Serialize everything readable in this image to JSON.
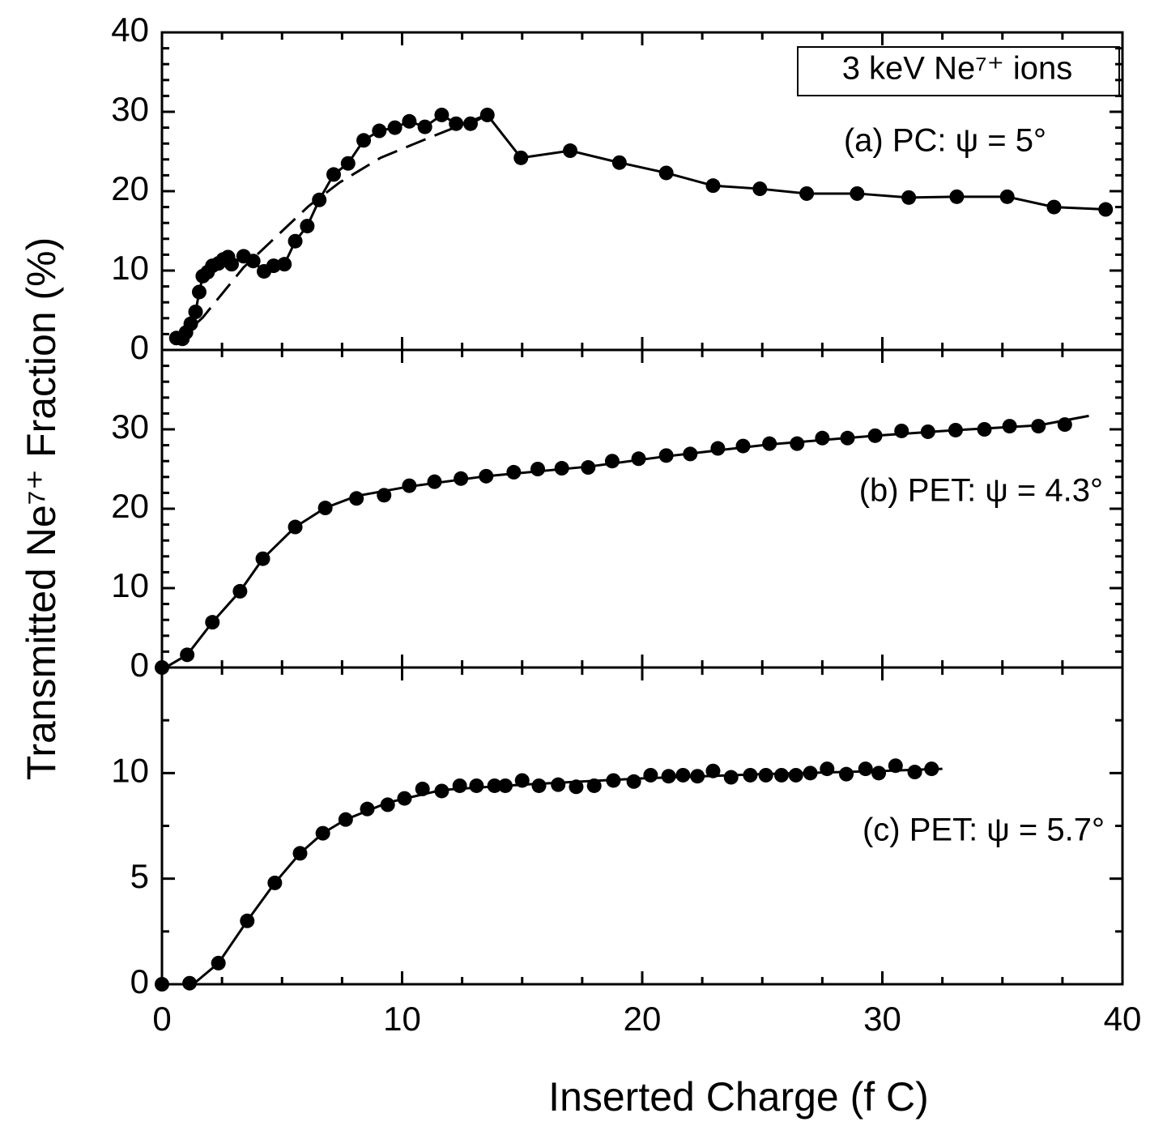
{
  "chart_data": [
    {
      "type": "line",
      "ylabel": "Transmitted Ne⁷⁺ Fraction (%)",
      "annotations": [
        "3 keV Ne⁷⁺ ions",
        "(a)  PC:  ψ = 5°"
      ],
      "xlim": [
        0,
        40
      ],
      "xticks": [
        0,
        10,
        20,
        30,
        40
      ],
      "xminorticks": [
        2.5,
        5,
        7.5,
        12.5,
        15,
        17.5,
        22.5,
        25,
        27.5,
        32.5,
        35,
        37.5
      ],
      "ylim": [
        0,
        40
      ],
      "yticks": [
        0,
        10,
        20,
        30,
        40
      ],
      "yminorticks": [
        2,
        4,
        6,
        8,
        12,
        14,
        16,
        18,
        22,
        24,
        26,
        28,
        32,
        34,
        36,
        38
      ],
      "series": [
        {
          "color": "#000000",
          "marker": true,
          "dash": false,
          "x": [
            0.6,
            0.85,
            1.0,
            1.2,
            1.4,
            1.55,
            1.7,
            1.9,
            2.1,
            2.35,
            2.55,
            2.75,
            2.9,
            3.4,
            3.8,
            4.25,
            4.65,
            5.1,
            5.55,
            6.05,
            6.55,
            7.15,
            7.75,
            8.4,
            9.05,
            9.7,
            10.3,
            10.95,
            11.65,
            12.25,
            12.85,
            13.55,
            14.95,
            17.0,
            19.05,
            21.0,
            22.95,
            24.9,
            26.85,
            28.95,
            31.1,
            33.1,
            35.2,
            37.15,
            39.3
          ],
          "values": [
            1.5,
            1.4,
            2.2,
            3.3,
            4.8,
            7.3,
            9.3,
            9.8,
            10.6,
            10.9,
            11.4,
            11.7,
            10.8,
            11.8,
            11.2,
            9.9,
            10.6,
            10.8,
            13.7,
            15.6,
            18.9,
            22.1,
            23.5,
            26.4,
            27.6,
            28.0,
            28.8,
            28.1,
            29.6,
            28.5,
            28.5,
            29.6,
            24.2,
            25.1,
            23.6,
            22.3,
            20.7,
            20.3,
            19.7,
            19.7,
            19.2,
            19.3,
            19.3,
            18.0,
            17.7
          ]
        },
        {
          "color": "#000000",
          "marker": false,
          "dash": true,
          "x": [
            0.5,
            1.7,
            3.4,
            6.1,
            7.4,
            9.1,
            11.1,
            13.5
          ],
          "values": [
            0.7,
            4.1,
            10.4,
            18.1,
            21.1,
            24.2,
            26.7,
            29.6
          ]
        }
      ]
    },
    {
      "type": "line",
      "annotations": [
        "(b) PET: ψ = 4.3°"
      ],
      "xlim": [
        0,
        40
      ],
      "xticks": [
        0,
        10,
        20,
        30,
        40
      ],
      "xminorticks": [
        2.5,
        5,
        7.5,
        12.5,
        15,
        17.5,
        22.5,
        25,
        27.5,
        32.5,
        35,
        37.5
      ],
      "ylim": [
        0,
        40
      ],
      "yticks": [
        0,
        10,
        20,
        30
      ],
      "yminorticks": [
        2,
        4,
        6,
        8,
        12,
        14,
        16,
        18,
        22,
        24,
        26,
        28,
        32,
        34,
        36,
        38
      ],
      "series": [
        {
          "color": "#000000",
          "marker": true,
          "dash": false,
          "line": false,
          "x": [
            0,
            1.05,
            2.1,
            3.25,
            4.2,
            5.55,
            6.8,
            8.1,
            9.25,
            10.3,
            11.35,
            12.45,
            13.5,
            14.65,
            15.65,
            16.65,
            17.75,
            18.75,
            19.85,
            21.0,
            22.0,
            23.15,
            24.2,
            25.3,
            26.45,
            27.5,
            28.55,
            29.7,
            30.8,
            31.9,
            33.05,
            34.25,
            35.3,
            36.5,
            37.6
          ],
          "values": [
            0,
            1.6,
            5.7,
            9.6,
            13.7,
            17.7,
            20.1,
            21.3,
            21.7,
            22.9,
            23.4,
            23.8,
            24.1,
            24.6,
            25.0,
            25.1,
            25.2,
            26.0,
            26.3,
            26.7,
            26.9,
            27.6,
            27.9,
            28.2,
            28.2,
            28.9,
            28.9,
            29.2,
            29.8,
            29.7,
            29.9,
            30.0,
            30.4,
            30.4,
            30.6
          ]
        },
        {
          "color": "#000000",
          "marker": false,
          "dash": false,
          "x": [
            0.2,
            1.05,
            2.1,
            3.25,
            4.2,
            5.55,
            6.8,
            8.1,
            10.3,
            13.5,
            17.75,
            21.0,
            25.3,
            29.7,
            33.05,
            36.5,
            38.6
          ],
          "values": [
            0.1,
            1.6,
            5.7,
            9.6,
            13.7,
            17.7,
            20.1,
            21.6,
            22.8,
            24.1,
            25.3,
            26.6,
            28.1,
            29.2,
            29.9,
            30.5,
            31.7
          ]
        }
      ]
    },
    {
      "type": "line",
      "xlabel": "Inserted Charge (f C)",
      "annotations": [
        "(c) PET: ψ = 5.7°"
      ],
      "xlim": [
        0,
        40
      ],
      "xticks": [
        0,
        10,
        20,
        30,
        40
      ],
      "xminorticks": [
        2.5,
        5,
        7.5,
        12.5,
        15,
        17.5,
        22.5,
        25,
        27.5,
        32.5,
        35,
        37.5
      ],
      "ylim": [
        0,
        15
      ],
      "yticks": [
        0,
        5,
        10
      ],
      "yminorticks": [
        2.5,
        7.5,
        12.5
      ],
      "series": [
        {
          "color": "#000000",
          "marker": true,
          "dash": false,
          "line": false,
          "x": [
            0,
            1.15,
            2.35,
            3.55,
            4.7,
            5.75,
            6.7,
            7.65,
            8.55,
            9.4,
            10.1,
            10.85,
            11.65,
            12.4,
            13.1,
            13.85,
            14.3,
            15.0,
            15.7,
            16.5,
            17.25,
            18.0,
            18.8,
            19.65,
            20.35,
            21.1,
            21.7,
            22.3,
            22.95,
            23.7,
            24.5,
            25.15,
            25.8,
            26.4,
            27.0,
            27.7,
            28.5,
            29.3,
            29.85,
            30.55,
            31.35,
            32.05
          ],
          "values": [
            0,
            0.05,
            1.0,
            3.0,
            4.8,
            6.2,
            7.15,
            7.8,
            8.3,
            8.5,
            8.8,
            9.25,
            9.15,
            9.4,
            9.4,
            9.4,
            9.4,
            9.65,
            9.4,
            9.45,
            9.35,
            9.4,
            9.65,
            9.6,
            9.9,
            9.85,
            9.9,
            9.85,
            10.1,
            9.8,
            9.9,
            9.9,
            9.9,
            9.9,
            10.0,
            10.2,
            9.95,
            10.2,
            10.0,
            10.35,
            10.05,
            10.2
          ]
        },
        {
          "color": "#000000",
          "marker": false,
          "dash": false,
          "x": [
            0,
            1.3,
            2.35,
            3.55,
            4.7,
            5.75,
            6.7,
            7.65,
            9.4,
            11.65,
            15,
            20,
            25,
            30,
            32.5
          ],
          "values": [
            0,
            0,
            1.0,
            3.0,
            4.8,
            6.2,
            7.15,
            7.8,
            8.6,
            9.2,
            9.45,
            9.75,
            9.95,
            10.1,
            10.2
          ]
        }
      ]
    }
  ]
}
